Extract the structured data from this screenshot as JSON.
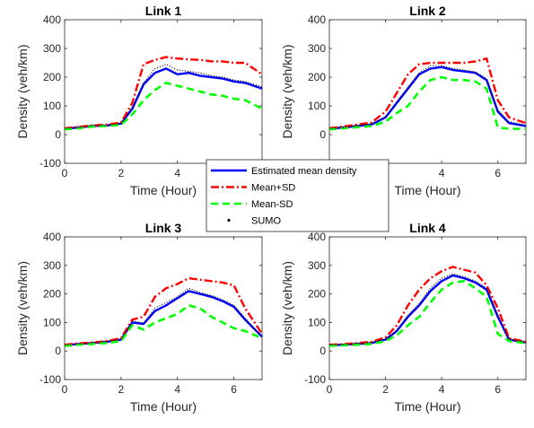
{
  "legend": {
    "placement": "center",
    "entries": [
      {
        "label": "Estimated mean density",
        "color": "#0000ff",
        "style": "solid"
      },
      {
        "label": "Mean+SD",
        "color": "#ff0000",
        "style": "dash-dot"
      },
      {
        "label": "Mean-SD",
        "color": "#00ff00",
        "style": "dashed"
      },
      {
        "label": "SUMO",
        "color": "#000000",
        "style": "dot"
      }
    ]
  },
  "chart_data": [
    {
      "type": "line",
      "title": "Link 1",
      "xlabel": "Time (Hour)",
      "ylabel": "Density (veh/km)",
      "xlim": [
        0,
        7
      ],
      "ylim": [
        -100,
        400
      ],
      "xticks": [
        0,
        2,
        4,
        6
      ],
      "yticks": [
        -100,
        0,
        100,
        200,
        300,
        400
      ],
      "grid": false,
      "x": [
        0,
        0.5,
        1,
        1.5,
        2,
        2.4,
        2.8,
        3.2,
        3.6,
        4,
        4.4,
        4.8,
        5.2,
        5.6,
        6,
        6.4,
        7
      ],
      "series": [
        {
          "name": "Estimated mean density",
          "values": [
            20,
            25,
            30,
            32,
            38,
            90,
            175,
            215,
            230,
            210,
            215,
            205,
            200,
            195,
            185,
            180,
            160
          ]
        },
        {
          "name": "Mean+SD",
          "values": [
            22,
            27,
            32,
            35,
            42,
            110,
            245,
            260,
            270,
            265,
            262,
            260,
            255,
            255,
            250,
            250,
            210
          ]
        },
        {
          "name": "Mean-SD",
          "values": [
            18,
            22,
            28,
            30,
            34,
            70,
            120,
            155,
            180,
            170,
            160,
            150,
            140,
            135,
            125,
            120,
            90
          ]
        },
        {
          "name": "SUMO",
          "values": [
            22,
            24,
            33,
            31,
            40,
            95,
            180,
            230,
            245,
            225,
            220,
            215,
            205,
            200,
            190,
            185,
            165
          ]
        }
      ]
    },
    {
      "type": "line",
      "title": "Link 2",
      "xlabel": "Time (Hour)",
      "ylabel": "Density (veh/km)",
      "xlim": [
        0,
        7
      ],
      "ylim": [
        -100,
        400
      ],
      "xticks": [
        0,
        2,
        4,
        6
      ],
      "yticks": [
        -100,
        0,
        100,
        200,
        300,
        400
      ],
      "grid": false,
      "x": [
        0,
        0.5,
        1,
        1.5,
        2,
        2.4,
        2.8,
        3.2,
        3.6,
        4,
        4.4,
        4.8,
        5.2,
        5.6,
        6,
        6.4,
        7
      ],
      "series": [
        {
          "name": "Estimated mean density",
          "values": [
            20,
            25,
            30,
            35,
            60,
            110,
            160,
            210,
            230,
            235,
            225,
            220,
            215,
            190,
            80,
            40,
            30
          ]
        },
        {
          "name": "Mean+SD",
          "values": [
            22,
            28,
            35,
            42,
            80,
            145,
            210,
            245,
            250,
            250,
            250,
            250,
            255,
            265,
            120,
            60,
            40
          ]
        },
        {
          "name": "Mean-SD",
          "values": [
            18,
            22,
            26,
            30,
            45,
            75,
            100,
            150,
            190,
            200,
            190,
            190,
            185,
            160,
            25,
            20,
            20
          ]
        },
        {
          "name": "SUMO",
          "values": [
            22,
            24,
            32,
            37,
            62,
            115,
            165,
            215,
            240,
            240,
            230,
            225,
            218,
            195,
            85,
            45,
            32
          ]
        }
      ]
    },
    {
      "type": "line",
      "title": "Link 3",
      "xlabel": "Time (Hour)",
      "ylabel": "Density (veh/km)",
      "xlim": [
        0,
        7
      ],
      "ylim": [
        -100,
        400
      ],
      "xticks": [
        0,
        2,
        4,
        6
      ],
      "yticks": [
        -100,
        0,
        100,
        200,
        300,
        400
      ],
      "grid": false,
      "x": [
        0,
        0.5,
        1,
        1.5,
        2,
        2.4,
        2.8,
        3.2,
        3.6,
        4,
        4.4,
        4.8,
        5.2,
        5.6,
        6,
        6.4,
        7
      ],
      "series": [
        {
          "name": "Estimated mean density",
          "values": [
            20,
            25,
            28,
            32,
            40,
            100,
            95,
            140,
            160,
            185,
            210,
            200,
            190,
            175,
            155,
            110,
            50
          ]
        },
        {
          "name": "Mean+SD",
          "values": [
            22,
            27,
            30,
            35,
            45,
            110,
            120,
            190,
            220,
            235,
            255,
            250,
            245,
            240,
            230,
            150,
            60
          ]
        },
        {
          "name": "Mean-SD",
          "values": [
            18,
            22,
            25,
            28,
            35,
            90,
            75,
            100,
            115,
            130,
            160,
            150,
            120,
            100,
            80,
            70,
            45
          ]
        },
        {
          "name": "SUMO",
          "values": [
            22,
            24,
            30,
            34,
            42,
            105,
            98,
            150,
            170,
            190,
            220,
            205,
            195,
            180,
            160,
            115,
            48
          ]
        }
      ]
    },
    {
      "type": "line",
      "title": "Link 4",
      "xlabel": "Time (Hour)",
      "ylabel": "Density (veh/km)",
      "xlim": [
        0,
        7
      ],
      "ylim": [
        -100,
        400
      ],
      "xticks": [
        0,
        2,
        4,
        6
      ],
      "yticks": [
        -100,
        0,
        100,
        200,
        300,
        400
      ],
      "grid": false,
      "x": [
        0,
        0.5,
        1,
        1.5,
        2,
        2.4,
        2.8,
        3.2,
        3.6,
        4,
        4.4,
        4.8,
        5.2,
        5.6,
        6,
        6.4,
        7
      ],
      "series": [
        {
          "name": "Estimated mean density",
          "values": [
            20,
            22,
            25,
            28,
            40,
            70,
            120,
            160,
            210,
            245,
            265,
            255,
            240,
            215,
            120,
            40,
            30
          ]
        },
        {
          "name": "Mean+SD",
          "values": [
            22,
            24,
            28,
            32,
            48,
            90,
            160,
            215,
            255,
            280,
            295,
            285,
            275,
            230,
            150,
            45,
            32
          ]
        },
        {
          "name": "Mean-SD",
          "values": [
            18,
            20,
            22,
            25,
            35,
            55,
            90,
            120,
            170,
            215,
            240,
            245,
            220,
            190,
            60,
            35,
            28
          ]
        },
        {
          "name": "SUMO",
          "values": [
            22,
            23,
            27,
            30,
            42,
            72,
            125,
            165,
            220,
            255,
            270,
            260,
            245,
            220,
            125,
            42,
            31
          ]
        }
      ]
    }
  ]
}
